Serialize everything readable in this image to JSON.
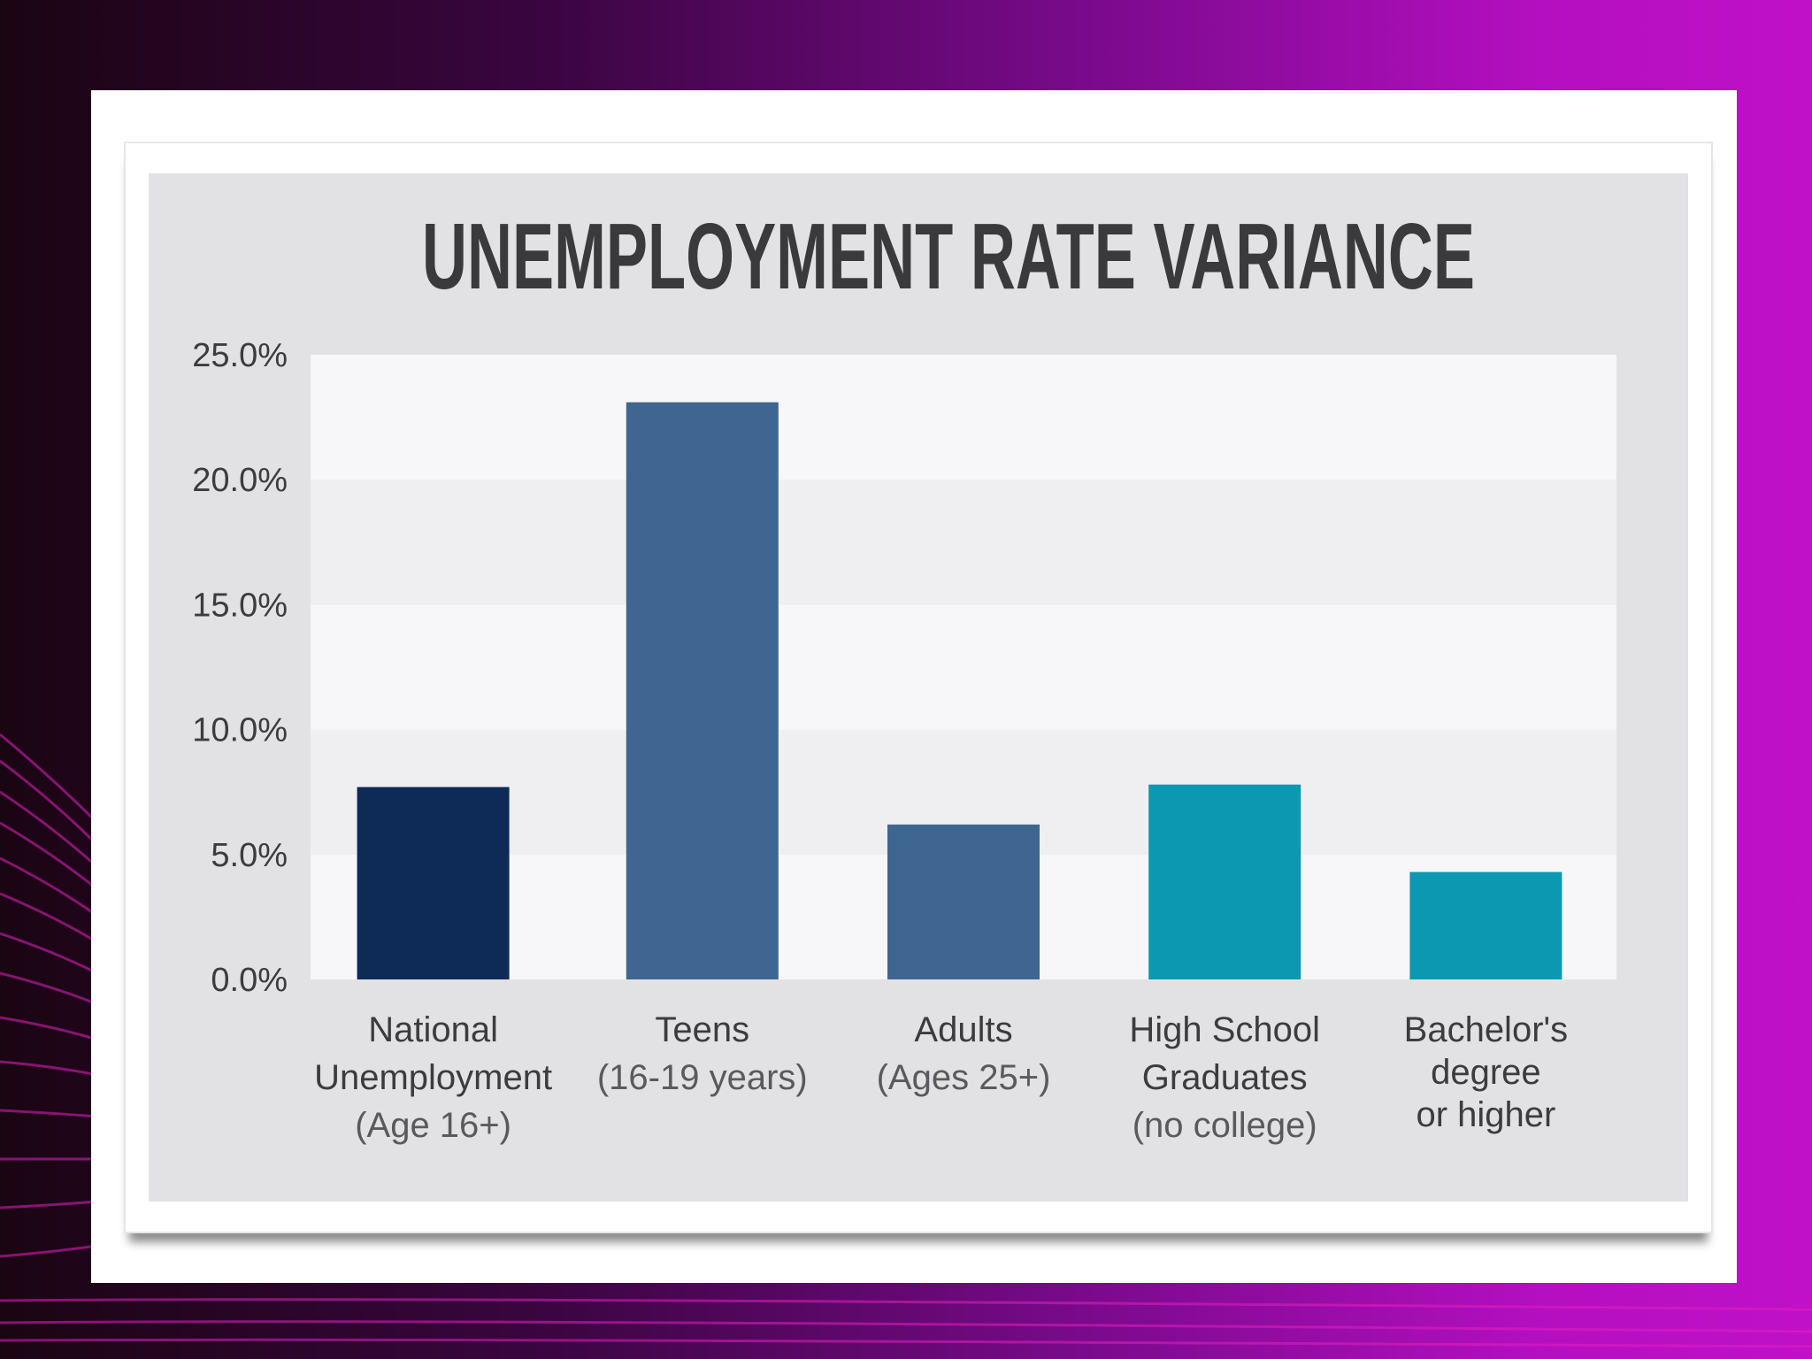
{
  "colors": {
    "navy": "#0d2b56",
    "steel_blue": "#3e6690",
    "teal": "#0c98b0",
    "title": "#3a3a3c"
  },
  "chart_data": {
    "type": "bar",
    "title": "UNEMPLOYMENT RATE VARIANCE",
    "xlabel": "",
    "ylabel": "",
    "ylim": [
      0,
      25
    ],
    "y_ticks": [
      "0.0%",
      "5.0%",
      "10.0%",
      "15.0%",
      "20.0%",
      "25.0%"
    ],
    "y_tick_values": [
      0,
      5,
      10,
      15,
      20,
      25
    ],
    "grid": "alternating horizontal bands",
    "legend": "none",
    "categories": [
      {
        "lines": [
          "National",
          "Unemployment",
          "(Age 16+)"
        ],
        "value": 7.7,
        "color": "#0d2b56"
      },
      {
        "lines": [
          "Teens",
          "(16-19 years)"
        ],
        "value": 23.1,
        "color": "#3e6690"
      },
      {
        "lines": [
          "Adults",
          "(Ages 25+)"
        ],
        "value": 6.2,
        "color": "#3e6690"
      },
      {
        "lines": [
          "High School",
          "Graduates",
          "(no college)"
        ],
        "value": 7.8,
        "color": "#0c98b0"
      },
      {
        "lines": [
          "Bachelor's",
          "degree",
          "or higher"
        ],
        "value": 4.3,
        "color": "#0c98b0"
      }
    ]
  }
}
